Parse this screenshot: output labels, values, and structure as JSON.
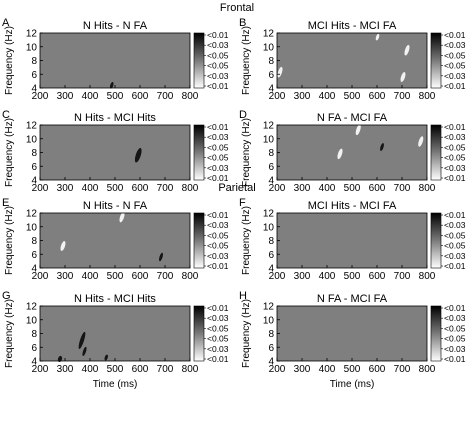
{
  "figure": {
    "sections": [
      {
        "label": "Frontal",
        "panels": [
          0,
          1,
          2,
          3
        ]
      },
      {
        "label": "Parietal",
        "panels": [
          4,
          5,
          6,
          7
        ]
      }
    ]
  },
  "chart_data": [
    {
      "type": "heatmap",
      "panel": "A",
      "title": "N Hits - N FA",
      "xlabel": "",
      "ylabel": "Frequency (Hz)",
      "xlim": [
        200,
        800
      ],
      "ylim": [
        4,
        12
      ],
      "xticks": [
        200,
        300,
        400,
        500,
        600,
        700,
        800
      ],
      "yticks": [
        4,
        6,
        8,
        10,
        12
      ],
      "colorbar": [
        "<0.01",
        "<0.03",
        "<0.05",
        "<0.05",
        "<0.03",
        "<0.01"
      ],
      "features": [
        {
          "x": 487,
          "y": 4.4,
          "w": 3,
          "h": 1.0,
          "sign": "dark"
        }
      ]
    },
    {
      "type": "heatmap",
      "panel": "B",
      "title": "MCI Hits - MCI FA",
      "xlabel": "",
      "ylabel": "Frequency (Hz)",
      "xlim": [
        200,
        800
      ],
      "ylim": [
        4,
        12
      ],
      "xticks": [
        200,
        300,
        400,
        500,
        600,
        700,
        800
      ],
      "yticks": [
        4,
        6,
        8,
        10,
        12
      ],
      "colorbar": [
        "<0.01",
        "<0.03",
        "<0.05",
        "<0.05",
        "<0.03",
        "<0.01"
      ],
      "features": [
        {
          "x": 212,
          "y": 6.3,
          "w": 4,
          "h": 1.6,
          "sign": "light"
        },
        {
          "x": 602,
          "y": 11.4,
          "w": 3,
          "h": 1.0,
          "sign": "light"
        },
        {
          "x": 720,
          "y": 9.5,
          "w": 4,
          "h": 1.6,
          "sign": "light"
        },
        {
          "x": 704,
          "y": 5.6,
          "w": 4,
          "h": 1.5,
          "sign": "light"
        }
      ]
    },
    {
      "type": "heatmap",
      "panel": "C",
      "title": "N Hits - MCI Hits",
      "xlabel": "",
      "ylabel": "Frequency (Hz)",
      "xlim": [
        200,
        800
      ],
      "ylim": [
        4,
        12
      ],
      "xticks": [
        200,
        300,
        400,
        500,
        600,
        700,
        800
      ],
      "yticks": [
        4,
        6,
        8,
        10,
        12
      ],
      "colorbar": [
        "<0.01",
        "<0.03",
        "<0.05",
        "<0.05",
        "<0.03",
        "<0.01"
      ],
      "features": [
        {
          "x": 593,
          "y": 7.6,
          "w": 5,
          "h": 2.2,
          "sign": "dark"
        }
      ]
    },
    {
      "type": "heatmap",
      "panel": "D",
      "title": "N FA - MCI FA",
      "xlabel": "",
      "ylabel": "Frequency (Hz)",
      "xlim": [
        200,
        800
      ],
      "ylim": [
        4,
        12
      ],
      "xticks": [
        200,
        300,
        400,
        500,
        600,
        700,
        800
      ],
      "yticks": [
        4,
        6,
        8,
        10,
        12
      ],
      "colorbar": [
        "<0.01",
        "<0.03",
        "<0.05",
        "<0.05",
        "<0.03",
        "<0.01"
      ],
      "features": [
        {
          "x": 452,
          "y": 7.8,
          "w": 4,
          "h": 1.6,
          "sign": "light"
        },
        {
          "x": 525,
          "y": 11.3,
          "w": 4,
          "h": 1.6,
          "sign": "light"
        },
        {
          "x": 620,
          "y": 8.8,
          "w": 3,
          "h": 1.2,
          "sign": "dark"
        },
        {
          "x": 775,
          "y": 9.6,
          "w": 4,
          "h": 1.6,
          "sign": "light"
        }
      ]
    },
    {
      "type": "heatmap",
      "panel": "E",
      "title": "N Hits - N FA",
      "xlabel": "",
      "ylabel": "Frequency (Hz)",
      "xlim": [
        200,
        800
      ],
      "ylim": [
        4,
        12
      ],
      "xticks": [
        200,
        300,
        400,
        500,
        600,
        700,
        800
      ],
      "yticks": [
        4,
        6,
        8,
        10,
        12
      ],
      "colorbar": [
        "<0.01",
        "<0.03",
        "<0.05",
        "<0.05",
        "<0.03",
        "<0.01"
      ],
      "features": [
        {
          "x": 292,
          "y": 7.2,
          "w": 4,
          "h": 1.5,
          "sign": "light"
        },
        {
          "x": 528,
          "y": 11.4,
          "w": 4,
          "h": 1.6,
          "sign": "light"
        },
        {
          "x": 684,
          "y": 5.6,
          "w": 3,
          "h": 1.3,
          "sign": "dark"
        }
      ]
    },
    {
      "type": "heatmap",
      "panel": "F",
      "title": "MCI Hits - MCI FA",
      "xlabel": "",
      "ylabel": "Frequency (Hz)",
      "xlim": [
        200,
        800
      ],
      "ylim": [
        4,
        12
      ],
      "xticks": [
        200,
        300,
        400,
        500,
        600,
        700,
        800
      ],
      "yticks": [
        4,
        6,
        8,
        10,
        12
      ],
      "colorbar": [
        "<0.01",
        "<0.03",
        "<0.05",
        "<0.05",
        "<0.03",
        "<0.01"
      ],
      "features": []
    },
    {
      "type": "heatmap",
      "panel": "G",
      "title": "N Hits - MCI Hits",
      "xlabel": "Time (ms)",
      "ylabel": "Frequency (Hz)",
      "xlim": [
        200,
        800
      ],
      "ylim": [
        4,
        12
      ],
      "xticks": [
        200,
        300,
        400,
        500,
        600,
        700,
        800
      ],
      "yticks": [
        4,
        6,
        8,
        10,
        12
      ],
      "colorbar": [
        "<0.01",
        "<0.03",
        "<0.05",
        "<0.05",
        "<0.03",
        "<0.01"
      ],
      "features": [
        {
          "x": 368,
          "y": 7.0,
          "w": 4,
          "h": 2.6,
          "sign": "dark"
        },
        {
          "x": 378,
          "y": 5.4,
          "w": 3,
          "h": 1.4,
          "sign": "dark"
        },
        {
          "x": 280,
          "y": 4.3,
          "w": 4,
          "h": 0.9,
          "sign": "dark"
        },
        {
          "x": 465,
          "y": 4.5,
          "w": 3,
          "h": 0.9,
          "sign": "dark"
        }
      ]
    },
    {
      "type": "heatmap",
      "panel": "H",
      "title": "N FA - MCI FA",
      "xlabel": "Time (ms)",
      "ylabel": "Frequency (Hz)",
      "xlim": [
        200,
        800
      ],
      "ylim": [
        4,
        12
      ],
      "xticks": [
        200,
        300,
        400,
        500,
        600,
        700,
        800
      ],
      "yticks": [
        4,
        6,
        8,
        10,
        12
      ],
      "colorbar": [
        "<0.01",
        "<0.03",
        "<0.05",
        "<0.05",
        "<0.03",
        "<0.01"
      ],
      "features": []
    }
  ]
}
